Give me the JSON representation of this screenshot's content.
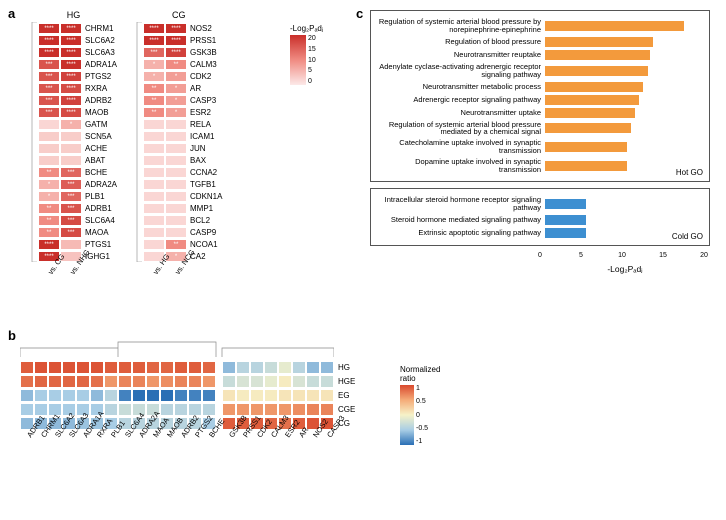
{
  "panel_labels": {
    "a": "a",
    "b": "b",
    "c": "c"
  },
  "panel_a": {
    "colorbar_title": "-Log₂Pₐdⱼ",
    "color_min": "#fce9e8",
    "color_mid": "#f08b82",
    "color_max": "#c92f2a",
    "ticks": [
      "20",
      "15",
      "10",
      "5",
      "0"
    ],
    "sig_font_color": "#ffffff",
    "blocks": [
      {
        "title": "HG",
        "col_labels": [
          "vs. CG",
          "vs. NHG"
        ],
        "rows": [
          {
            "label": "CHRM1",
            "cells": [
              {
                "v": 20,
                "s": "****"
              },
              {
                "v": 20,
                "s": "****"
              }
            ]
          },
          {
            "label": "SLC6A2",
            "cells": [
              {
                "v": 20,
                "s": "****"
              },
              {
                "v": 20,
                "s": "****"
              }
            ]
          },
          {
            "label": "SLC6A3",
            "cells": [
              {
                "v": 20,
                "s": "****"
              },
              {
                "v": 20,
                "s": "****"
              }
            ]
          },
          {
            "label": "ADRA1A",
            "cells": [
              {
                "v": 16,
                "s": "***"
              },
              {
                "v": 20,
                "s": "****"
              }
            ]
          },
          {
            "label": "PTGS2",
            "cells": [
              {
                "v": 16,
                "s": "***"
              },
              {
                "v": 18,
                "s": "****"
              }
            ]
          },
          {
            "label": "RXRA",
            "cells": [
              {
                "v": 16,
                "s": "***"
              },
              {
                "v": 17,
                "s": "****"
              }
            ]
          },
          {
            "label": "ADRB2",
            "cells": [
              {
                "v": 16,
                "s": "***"
              },
              {
                "v": 18,
                "s": "****"
              }
            ]
          },
          {
            "label": "MAOB",
            "cells": [
              {
                "v": 16,
                "s": "***"
              },
              {
                "v": 17,
                "s": "****"
              }
            ]
          },
          {
            "label": "GATM",
            "cells": [
              {
                "v": 2,
                "s": ""
              },
              {
                "v": 6,
                "s": "*"
              }
            ]
          },
          {
            "label": "SCN5A",
            "cells": [
              {
                "v": 3,
                "s": ""
              },
              {
                "v": 3,
                "s": ""
              }
            ]
          },
          {
            "label": "ACHE",
            "cells": [
              {
                "v": 3,
                "s": ""
              },
              {
                "v": 3,
                "s": ""
              }
            ]
          },
          {
            "label": "ABAT",
            "cells": [
              {
                "v": 3,
                "s": ""
              },
              {
                "v": 3,
                "s": ""
              }
            ]
          },
          {
            "label": "BCHE",
            "cells": [
              {
                "v": 10,
                "s": "**"
              },
              {
                "v": 14,
                "s": "***"
              }
            ]
          },
          {
            "label": "ADRA2A",
            "cells": [
              {
                "v": 6,
                "s": "*"
              },
              {
                "v": 15,
                "s": "***"
              }
            ]
          },
          {
            "label": "PLB1",
            "cells": [
              {
                "v": 6,
                "s": "*"
              },
              {
                "v": 14,
                "s": "***"
              }
            ]
          },
          {
            "label": "ADRB1",
            "cells": [
              {
                "v": 10,
                "s": "**"
              },
              {
                "v": 16,
                "s": "***"
              }
            ]
          },
          {
            "label": "SLC6A4",
            "cells": [
              {
                "v": 10,
                "s": "**"
              },
              {
                "v": 17,
                "s": "***"
              }
            ]
          },
          {
            "label": "MAOA",
            "cells": [
              {
                "v": 10,
                "s": "**"
              },
              {
                "v": 17,
                "s": "***"
              }
            ]
          },
          {
            "label": "PTGS1",
            "cells": [
              {
                "v": 20,
                "s": "****"
              },
              {
                "v": 5,
                "s": ""
              }
            ]
          },
          {
            "label": "IGHG1",
            "cells": [
              {
                "v": 20,
                "s": "****"
              },
              {
                "v": 4,
                "s": ""
              }
            ]
          }
        ]
      },
      {
        "title": "CG",
        "col_labels": [
          "vs. HG",
          "vs. NCG"
        ],
        "rows": [
          {
            "label": "NOS2",
            "cells": [
              {
                "v": 20,
                "s": "****"
              },
              {
                "v": 20,
                "s": "****"
              }
            ]
          },
          {
            "label": "PRSS1",
            "cells": [
              {
                "v": 20,
                "s": "****"
              },
              {
                "v": 20,
                "s": "****"
              }
            ]
          },
          {
            "label": "GSK3B",
            "cells": [
              {
                "v": 14,
                "s": "***"
              },
              {
                "v": 18,
                "s": "****"
              }
            ]
          },
          {
            "label": "CALM3",
            "cells": [
              {
                "v": 6,
                "s": "*"
              },
              {
                "v": 10,
                "s": "**"
              }
            ]
          },
          {
            "label": "CDK2",
            "cells": [
              {
                "v": 6,
                "s": "*"
              },
              {
                "v": 8,
                "s": "*"
              }
            ]
          },
          {
            "label": "AR",
            "cells": [
              {
                "v": 10,
                "s": "**"
              },
              {
                "v": 8,
                "s": "*"
              }
            ]
          },
          {
            "label": "CASP3",
            "cells": [
              {
                "v": 10,
                "s": "**"
              },
              {
                "v": 8,
                "s": "*"
              }
            ]
          },
          {
            "label": "ESR2",
            "cells": [
              {
                "v": 10,
                "s": "**"
              },
              {
                "v": 8,
                "s": "*"
              }
            ]
          },
          {
            "label": "RELA",
            "cells": [
              {
                "v": 2,
                "s": ""
              },
              {
                "v": 2,
                "s": ""
              }
            ]
          },
          {
            "label": "ICAM1",
            "cells": [
              {
                "v": 2,
                "s": ""
              },
              {
                "v": 2,
                "s": ""
              }
            ]
          },
          {
            "label": "JUN",
            "cells": [
              {
                "v": 2,
                "s": ""
              },
              {
                "v": 2,
                "s": ""
              }
            ]
          },
          {
            "label": "BAX",
            "cells": [
              {
                "v": 2,
                "s": ""
              },
              {
                "v": 2,
                "s": ""
              }
            ]
          },
          {
            "label": "CCNA2",
            "cells": [
              {
                "v": 2,
                "s": ""
              },
              {
                "v": 2,
                "s": ""
              }
            ]
          },
          {
            "label": "TGFB1",
            "cells": [
              {
                "v": 2,
                "s": ""
              },
              {
                "v": 2,
                "s": ""
              }
            ]
          },
          {
            "label": "CDKN1A",
            "cells": [
              {
                "v": 2,
                "s": ""
              },
              {
                "v": 2,
                "s": ""
              }
            ]
          },
          {
            "label": "MMP1",
            "cells": [
              {
                "v": 2,
                "s": ""
              },
              {
                "v": 2,
                "s": ""
              }
            ]
          },
          {
            "label": "BCL2",
            "cells": [
              {
                "v": 2,
                "s": ""
              },
              {
                "v": 2,
                "s": ""
              }
            ]
          },
          {
            "label": "CASP9",
            "cells": [
              {
                "v": 2,
                "s": ""
              },
              {
                "v": 2,
                "s": ""
              }
            ]
          },
          {
            "label": "NCOA1",
            "cells": [
              {
                "v": 2,
                "s": ""
              },
              {
                "v": 10,
                "s": "**"
              }
            ]
          },
          {
            "label": "CA2",
            "cells": [
              {
                "v": 2,
                "s": ""
              },
              {
                "v": 6,
                "s": "*"
              }
            ]
          }
        ]
      }
    ]
  },
  "panel_b": {
    "colorbar_title": "Normalized\nratio",
    "ticks": [
      "1",
      "0.5",
      "0",
      "-0.5",
      "-1"
    ],
    "color_low": "#2a6fb5",
    "color_mid_low": "#a8cde5",
    "color_zero": "#f6f2c8",
    "color_mid_high": "#f5ab78",
    "color_high": "#d9492d",
    "row_labels": [
      "HG",
      "HGE",
      "EG",
      "CGE",
      "CG"
    ],
    "col_labels": [
      "ADRB1",
      "CHRM1",
      "SLC6A2",
      "SLC6A3",
      "ADRA1A",
      "RXRA",
      "PLB1",
      "SLC6A4",
      "ADRA2A",
      "MAOA",
      "MAOB",
      "ADRB2",
      "PTGS2",
      "BCHE",
      "GSK3B",
      "PRSS1",
      "CDK2",
      "CALM3",
      "ESR2",
      "AR",
      "NOS2",
      "CASP3"
    ],
    "data": [
      [
        0.9,
        0.95,
        0.95,
        0.95,
        0.95,
        0.95,
        0.9,
        0.9,
        0.9,
        0.85,
        0.85,
        0.9,
        0.9,
        0.85,
        -0.6,
        -0.4,
        -0.4,
        -0.3,
        -0.1,
        -0.4,
        -0.6,
        -0.6
      ],
      [
        0.8,
        0.85,
        0.85,
        0.85,
        0.85,
        0.8,
        0.6,
        0.7,
        0.7,
        0.6,
        0.65,
        0.7,
        0.7,
        0.6,
        -0.3,
        -0.2,
        -0.2,
        -0.1,
        0.05,
        -0.2,
        -0.3,
        -0.3
      ],
      [
        -0.6,
        -0.5,
        -0.5,
        -0.5,
        -0.5,
        -0.6,
        -0.4,
        -0.9,
        -1,
        -1,
        -1,
        -0.9,
        -0.9,
        -0.9,
        0.1,
        0.05,
        0.05,
        0.05,
        0.1,
        0.1,
        0.1,
        0.1
      ],
      [
        -0.5,
        -0.5,
        -0.5,
        -0.5,
        -0.5,
        -0.5,
        -0.4,
        -0.3,
        -0.3,
        -0.3,
        -0.4,
        -0.4,
        -0.4,
        -0.4,
        0.6,
        0.6,
        0.6,
        0.6,
        0.6,
        0.65,
        0.7,
        0.7
      ],
      [
        -0.6,
        -0.6,
        -0.6,
        -0.6,
        -0.55,
        -0.55,
        -0.5,
        -0.4,
        -0.4,
        -0.4,
        -0.4,
        -0.4,
        -0.4,
        -0.5,
        0.9,
        0.9,
        0.9,
        0.85,
        0.8,
        0.9,
        0.95,
        0.95
      ]
    ]
  },
  "panel_c": {
    "xmax": 20,
    "xtick_step": 5,
    "xlabel": "-Log₂Pₐdⱼ",
    "hot": {
      "title": "Hot GO",
      "color": "#f39a3c",
      "bars": [
        {
          "label": "Regulation of systemic arterial blood pressure by norepinephrine-epinephrine",
          "v": 17
        },
        {
          "label": "Regulation of blood pressure",
          "v": 13.2
        },
        {
          "label": "Neurotransmitter reuptake",
          "v": 12.8
        },
        {
          "label": "Adenylate cyclase-activating adrenergic receptor signaling pathway",
          "v": 12.5
        },
        {
          "label": "Neurotransmitter metabolic process",
          "v": 12
        },
        {
          "label": "Adrenergic receptor signaling pathway",
          "v": 11.5
        },
        {
          "label": "Neurotransmitter uptake",
          "v": 11
        },
        {
          "label": "Regulation of systemic arterial blood pressure mediated by a chemical signal",
          "v": 10.5
        },
        {
          "label": "Catecholamine uptake involved in synaptic transmission",
          "v": 10
        },
        {
          "label": "Dopamine uptake involved in synaptic transmission",
          "v": 10
        }
      ]
    },
    "cold": {
      "title": "Cold GO",
      "color": "#3d8fd1",
      "bars": [
        {
          "label": "Intracellular steroid hormone receptor signaling pathway",
          "v": 5
        },
        {
          "label": "Steroid hormone mediated signaling pathway",
          "v": 5
        },
        {
          "label": "Extrinsic apoptotic signaling pathway",
          "v": 5
        }
      ]
    }
  }
}
